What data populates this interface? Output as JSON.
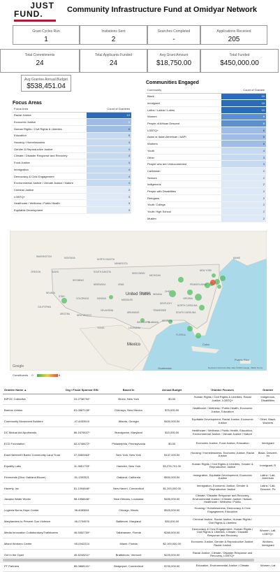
{
  "header": {
    "logo_line1": "JUST",
    "logo_line2": "FUND.",
    "title": "Community Infrastructure Fund at Omidyar Network",
    "brand_color": "#c8102e"
  },
  "metrics_row1": [
    {
      "label": "Grant Cycles Run",
      "value": "1"
    },
    {
      "label": "Invitations Sent",
      "value": "2"
    },
    {
      "label": "Searches Completed",
      "value": "-"
    },
    {
      "label": "Applications Received",
      "value": "205"
    }
  ],
  "metrics_row2": [
    {
      "label": "Total Commitments",
      "value": "24"
    },
    {
      "label": "Total Applicants Funded",
      "value": "24"
    },
    {
      "label": "Avg Grant Amount",
      "value": "$18,750.00"
    },
    {
      "label": "Total Funded",
      "value": "$450,000.00"
    }
  ],
  "avg_budget": {
    "label": "Avg Grantee Annual Budget",
    "value": "$538,451.04"
  },
  "focus": {
    "title": "Focus Areas",
    "col1": "Focus Area",
    "col2": "Count of Grantees",
    "rows": [
      {
        "name": "Racial Justice",
        "count": 12
      },
      {
        "name": "Economic Justice",
        "count": 8
      },
      {
        "name": "Human Rights / Civil Rights & Liberties",
        "count": 6
      },
      {
        "name": "Education",
        "count": 5
      },
      {
        "name": "Housing / Homelessness",
        "count": 4
      },
      {
        "name": "Gender & Reproductive Justice",
        "count": 4
      },
      {
        "name": "Climate / Disaster Response and Recovery",
        "count": 4
      },
      {
        "name": "Food Justice",
        "count": 4
      },
      {
        "name": "Immigration",
        "count": 4
      },
      {
        "name": "Democracy & Civic Engagement",
        "count": 4
      },
      {
        "name": "Environmental Justice / Climate Justice / Nature",
        "count": 4
      },
      {
        "name": "Criminal Justice",
        "count": 3
      },
      {
        "name": "LGBTQ+",
        "count": 3
      },
      {
        "name": "Healthcare / Wellness / Public Health",
        "count": 3
      },
      {
        "name": "Equitable Development",
        "count": 3
      }
    ]
  },
  "communities": {
    "title": "Communities Engaged",
    "col1": "Community",
    "col2": "Count of Grantee",
    "rows": [
      {
        "name": "Black",
        "count": 10
      },
      {
        "name": "Immigrant",
        "count": 10
      },
      {
        "name": "Latinx / Latina / Latino",
        "count": 10
      },
      {
        "name": "Women",
        "count": 8
      },
      {
        "name": "People of African Descent",
        "count": 8
      },
      {
        "name": "LGBTQ+",
        "count": 6
      },
      {
        "name": "Asian or Asian American / AAPI",
        "count": 6
      },
      {
        "name": "Workers",
        "count": 6
      },
      {
        "name": "Youth",
        "count": 4
      },
      {
        "name": "Other",
        "count": 3
      },
      {
        "name": "People who are Undocumented",
        "count": 3
      },
      {
        "name": "Caribbean",
        "count": 2
      },
      {
        "name": "Seniors",
        "count": 2
      },
      {
        "name": "Indigenous",
        "count": 2
      },
      {
        "name": "People with Disabilities",
        "count": 2
      },
      {
        "name": "Refugees",
        "count": 2
      },
      {
        "name": "Youth: College",
        "count": 2
      },
      {
        "name": "Youth: High School",
        "count": 2
      },
      {
        "name": "Muslim",
        "count": 2
      }
    ]
  },
  "map": {
    "labels": {
      "country": "United States",
      "mexico": "Mexico",
      "cuba": "Cuba",
      "puerto_rico": "Puerto Rico",
      "guatemala": "Guatemala",
      "google": "Google",
      "attribution": "Keyboard shortcuts   Map data ©2023 Google, INEGI   Terms"
    },
    "states": [
      "WASHINGTON",
      "MONTANA",
      "NORTH DAKOTA",
      "MINNESOTA",
      "OREGON",
      "IDAHO",
      "SOUTH DAKOTA",
      "WYOMING",
      "NEBRASKA",
      "NEVADA",
      "UTAH",
      "COLORADO",
      "KANSAS",
      "CALIFORNIA",
      "ARIZONA",
      "NEW MEXICO",
      "OKLAHOMA",
      "TEXAS",
      "MISSOURI",
      "ILLINOIS",
      "INDIANA",
      "OHIO",
      "KENTUCKY",
      "TENNESSEE",
      "ARKANSAS",
      "MISSISSIPPI",
      "ALABAMA",
      "GEORGIA",
      "SOUTH CAROLINA",
      "NORTH CAROLINA",
      "VIRGINIA",
      "FLORIDA",
      "MICHIGAN",
      "WISCONSIN",
      "IOWA",
      "LOUISIANA",
      "NEW YORK",
      "PENNSYLVANIA",
      "MAINE"
    ]
  },
  "legend": {
    "label": "Constituents",
    "min": "0",
    "max": "8"
  },
  "grantees": {
    "columns": [
      "Grantee Name ▲",
      "Org / Fiscal Sponsor EIN",
      "Based In",
      "Annual Budget",
      "Grantee Focuses",
      "Granteе"
    ],
    "rows": [
      [
        "BIPOC Collective",
        "24-2738794*",
        "Bronx, New York",
        "$0.00",
        "Human Rights / Civil Rights & Liberties, Racial Justice, LGBTQ+",
        "Indigenous, Disabilities"
      ],
      [
        "Barrios Unidos",
        "81-0567128*",
        "Chimayo, New Mexico",
        "$75,000.00",
        "Healthcare / Wellness / Public Health, Economic Justice, Education",
        ""
      ],
      [
        "Community Movement Builders",
        "47-4453915",
        "Atlanta, Georgia",
        "$400,000.00",
        "Equitable Development, Racial Justice, Economic Justice",
        "Other, Black, Workers"
      ],
      [
        "DC Mutual Aid Apotheosis",
        "86-1679637*",
        "Brandywine, Maryland",
        "$15,000.00",
        "Healthcare / Wellness / Public Health, Education, Environmental Justice / Climate Justice / Nature",
        ""
      ],
      [
        "ECD Foundation",
        "82-4746672*",
        "Philadelphia, Pennsylvania",
        "$0.00",
        "Economic Justice, Food Justice, Education",
        "Immigrant"
      ],
      [
        "East Harlem/El Barrio Community Land Trust",
        "47-5082663*",
        "New York, New York",
        "$137,000.00",
        "Housing / Homelessness, Economic Justice, Racial Justice",
        "Black, Descent, Im"
      ],
      [
        "Equality Labs",
        "11-3651733*",
        "Hamden, New York",
        "$3,276,791.00",
        "Human Rights / Civil Rights & Liberties, Gender & Reproductive Justice",
        "Immigrant, R"
      ],
      [
        "Firemonds (Dba: Oakland Bloom)",
        "81-1393321",
        "Oakland, California",
        "$500,000.00",
        "Immigration, Equitable Development, Economic Justice",
        "Latinx / Lati, American"
      ],
      [
        "Haverty, Inc",
        "81-1094846*",
        "New Haven, Connecticut",
        "$1,200,000.00",
        "Immigration, Economic Justice, Gender & Reproductive Justice",
        "Latinx / Lati, Descent, Pe"
      ],
      [
        "Jacqlan Water Works",
        "58-1956646*",
        "New Orleans, Louisiana",
        "$450,000.00",
        "Climate / Disaster Response and Recovery, Environmental Justice / Climate Justice / Nature, Healthcare / Wellness / Public",
        ""
      ],
      [
        "Lugenia Burns Hope Center",
        "36-4083061",
        "Chicago, Illinois",
        "$520,000.00",
        "Housing / Homelessness, Democracy & Civic Engagement, Education",
        ""
      ],
      [
        "Marylanders to Prevent Gun Violence",
        "46-2794976",
        "Baltimore, Maryland",
        "$30,000.00",
        "Criminal Justice, Racial Justice, Human Rights / Civil Rights & Liberties",
        ""
      ],
      [
        "Media Innovation Collaboratory/Trailblazers",
        "46-5052750*",
        "Tallahassee, Florida",
        "$260,000.00",
        "Democracy & Civic Engagement, Human Rights / Civil Rights & Liberties, Climate / Disaster Response and Recovery",
        "Women, Lati, LGBTQ+"
      ],
      [
        "Miami Workers Center",
        "65-0942224",
        "Miami, Florida",
        "$2,100,000.00",
        "Economic Justice, Gender & Reproductive Justice, Racial Justice",
        "Workers, Immigrant"
      ],
      [
        "Out in the Open",
        "45-5248211*",
        "Brattleboro, Vermont",
        "$220,000.00",
        "Racial Justice, Climate / Disaster Response and Recovery, LGBTQ+",
        ""
      ],
      [
        "PT Partners",
        "85-0868141*",
        "Bridgeport, Connecticut",
        "$700,000.00",
        "Education, Environmental Justice / Climate",
        "Women, Lat"
      ]
    ]
  }
}
